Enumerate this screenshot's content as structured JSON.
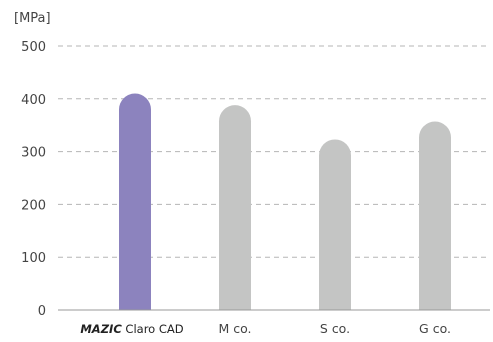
{
  "chart_data": {
    "type": "bar",
    "unit_label": "[MPa]",
    "categories": [
      {
        "brand": "MAZIC",
        "rest": " Claro CAD"
      },
      {
        "brand": "",
        "rest": "M co."
      },
      {
        "brand": "",
        "rest": "S co."
      },
      {
        "brand": "",
        "rest": "G co."
      }
    ],
    "values": [
      410,
      388,
      323,
      357
    ],
    "colors": [
      "#8c83be",
      "#c4c5c4",
      "#c4c5c4",
      "#c4c5c4"
    ],
    "ylim": [
      0,
      500
    ],
    "yticks": [
      0,
      100,
      200,
      300,
      400,
      500
    ],
    "grid": true,
    "grid_style": "dashed",
    "legend": "none",
    "title": "",
    "xlabel": "",
    "ylabel": ""
  }
}
